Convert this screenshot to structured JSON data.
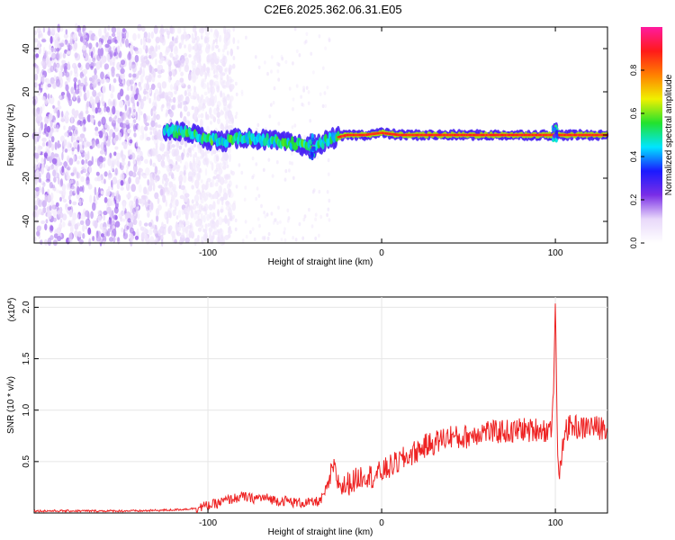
{
  "title": "C2E6.2025.362.06.31.E05",
  "chart_data": [
    {
      "type": "heatmap",
      "xlabel": "Height of straight line (km)",
      "ylabel": "Frequency (Hz)",
      "xlim": [
        -200,
        130
      ],
      "ylim": [
        -50,
        50
      ],
      "x_ticks": [
        -100,
        0,
        100
      ],
      "y_ticks": [
        -40,
        -20,
        0,
        20,
        40
      ],
      "colorbar": {
        "label": "Normalized spectral amplitude",
        "range": [
          0,
          1
        ],
        "ticks": [
          "0.0",
          "0.2",
          "0.4",
          "0.6",
          "0.8"
        ],
        "colormap": [
          "#ffffff",
          "#e8d8fa",
          "#7a2ee6",
          "#1a1aff",
          "#00e5ff",
          "#22e22e",
          "#f0f000",
          "#ff8000",
          "#ff1a1a",
          "#ff1aa0"
        ]
      },
      "features": {
        "noise_region_x": [
          -200,
          -110
        ],
        "ridge_points": [
          [
            -125,
            2
          ],
          [
            -110,
            1
          ],
          [
            -100,
            -2
          ],
          [
            -90,
            -3
          ],
          [
            -80,
            -1
          ],
          [
            -70,
            -2
          ],
          [
            -60,
            -3
          ],
          [
            -50,
            -4
          ],
          [
            -40,
            -6
          ],
          [
            -35,
            -4
          ],
          [
            -30,
            -2
          ],
          [
            -25,
            -1
          ],
          [
            -20,
            0
          ],
          [
            -10,
            0
          ],
          [
            0,
            1
          ],
          [
            10,
            0
          ],
          [
            50,
            0
          ],
          [
            100,
            0
          ],
          [
            130,
            0
          ]
        ],
        "disturbance_x": [
          -40,
          100
        ]
      }
    },
    {
      "type": "line",
      "xlabel": "Height of straight line (km)",
      "ylabel": "SNR (10 * v/v)",
      "y_multiplier": "(x10^4)",
      "xlim": [
        -200,
        130
      ],
      "ylim": [
        0,
        2.1
      ],
      "x_ticks": [
        -100,
        0,
        100
      ],
      "y_ticks": [
        "0.5",
        "1.0",
        "1.5",
        "2.0"
      ],
      "series": [
        {
          "color": "#ee2222",
          "x": [
            -200,
            -180,
            -160,
            -140,
            -120,
            -110,
            -100,
            -95,
            -90,
            -85,
            -80,
            -75,
            -70,
            -65,
            -60,
            -55,
            -50,
            -45,
            -40,
            -35,
            -30,
            -28,
            -25,
            -22,
            -20,
            -15,
            -10,
            -5,
            0,
            5,
            10,
            15,
            20,
            25,
            30,
            35,
            40,
            45,
            50,
            55,
            60,
            65,
            70,
            75,
            80,
            85,
            90,
            95,
            98,
            99,
            100,
            101,
            102,
            105,
            110,
            115,
            120,
            125,
            130
          ],
          "y": [
            0.02,
            0.02,
            0.02,
            0.02,
            0.03,
            0.04,
            0.07,
            0.09,
            0.12,
            0.14,
            0.16,
            0.14,
            0.15,
            0.14,
            0.12,
            0.12,
            0.1,
            0.1,
            0.1,
            0.12,
            0.3,
            0.45,
            0.3,
            0.25,
            0.28,
            0.32,
            0.38,
            0.35,
            0.4,
            0.45,
            0.5,
            0.55,
            0.6,
            0.65,
            0.68,
            0.72,
            0.75,
            0.72,
            0.75,
            0.78,
            0.8,
            0.78,
            0.8,
            0.78,
            0.82,
            0.8,
            0.82,
            0.8,
            0.85,
            1.2,
            2.08,
            0.9,
            0.25,
            0.8,
            0.85,
            0.82,
            0.85,
            0.82,
            0.85
          ]
        }
      ]
    }
  ]
}
